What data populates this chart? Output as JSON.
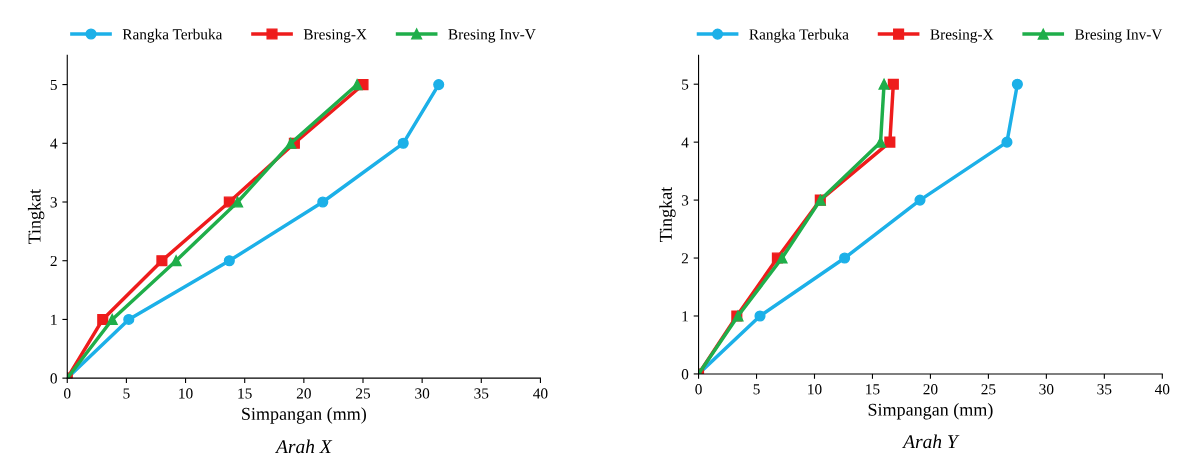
{
  "chart_data": [
    {
      "type": "line",
      "xlabel": "Simpangan (mm)",
      "ylabel": "Tingkat",
      "annotations": [
        "Arah X"
      ],
      "xlim": [
        0,
        40
      ],
      "xticks": [
        0,
        5,
        10,
        15,
        20,
        25,
        30,
        35,
        40
      ],
      "ylim": [
        0,
        5.5
      ],
      "yticks": [
        0,
        1,
        2,
        3,
        4,
        5
      ],
      "grid": false,
      "legend": "top",
      "series": [
        {
          "name": "Rangka Terbuka",
          "color": "#1cb0e8",
          "marker": "circle",
          "x": [
            0,
            5.2,
            13.7,
            21.6,
            28.4,
            31.4
          ],
          "values": [
            0,
            1,
            2,
            3,
            4,
            5
          ]
        },
        {
          "name": "Bresing-X",
          "color": "#ee1c1c",
          "marker": "square",
          "x": [
            0,
            3.0,
            8.0,
            13.7,
            19.2,
            25.0
          ],
          "values": [
            0,
            1,
            2,
            3,
            4,
            5
          ]
        },
        {
          "name": "Bresing Inv-V",
          "color": "#1fae4a",
          "marker": "triangle",
          "x": [
            0,
            3.8,
            9.2,
            14.4,
            18.9,
            24.5
          ],
          "values": [
            0,
            1,
            2,
            3,
            4,
            5
          ]
        }
      ]
    },
    {
      "type": "line",
      "xlabel": "Simpangan (mm)",
      "ylabel": "Tingkat",
      "annotations": [
        "Arah Y"
      ],
      "xlim": [
        0,
        40
      ],
      "xticks": [
        0,
        5,
        10,
        15,
        20,
        25,
        30,
        35,
        40
      ],
      "ylim": [
        0,
        5.5
      ],
      "yticks": [
        0,
        1,
        2,
        3,
        4,
        5
      ],
      "grid": false,
      "legend": "top",
      "series": [
        {
          "name": "Rangka Terbuka",
          "color": "#1cb0e8",
          "marker": "circle",
          "x": [
            0,
            5.3,
            12.6,
            19.1,
            26.6,
            27.5
          ],
          "values": [
            0,
            1,
            2,
            3,
            4,
            5
          ]
        },
        {
          "name": "Bresing-X",
          "color": "#ee1c1c",
          "marker": "square",
          "x": [
            0,
            3.3,
            6.8,
            10.5,
            16.5,
            16.8
          ],
          "values": [
            0,
            1,
            2,
            3,
            4,
            5
          ]
        },
        {
          "name": "Bresing Inv-V",
          "color": "#1fae4a",
          "marker": "triangle",
          "x": [
            0,
            3.4,
            7.2,
            10.5,
            15.7,
            16.0
          ],
          "values": [
            0,
            1,
            2,
            3,
            4,
            5
          ]
        }
      ]
    }
  ]
}
